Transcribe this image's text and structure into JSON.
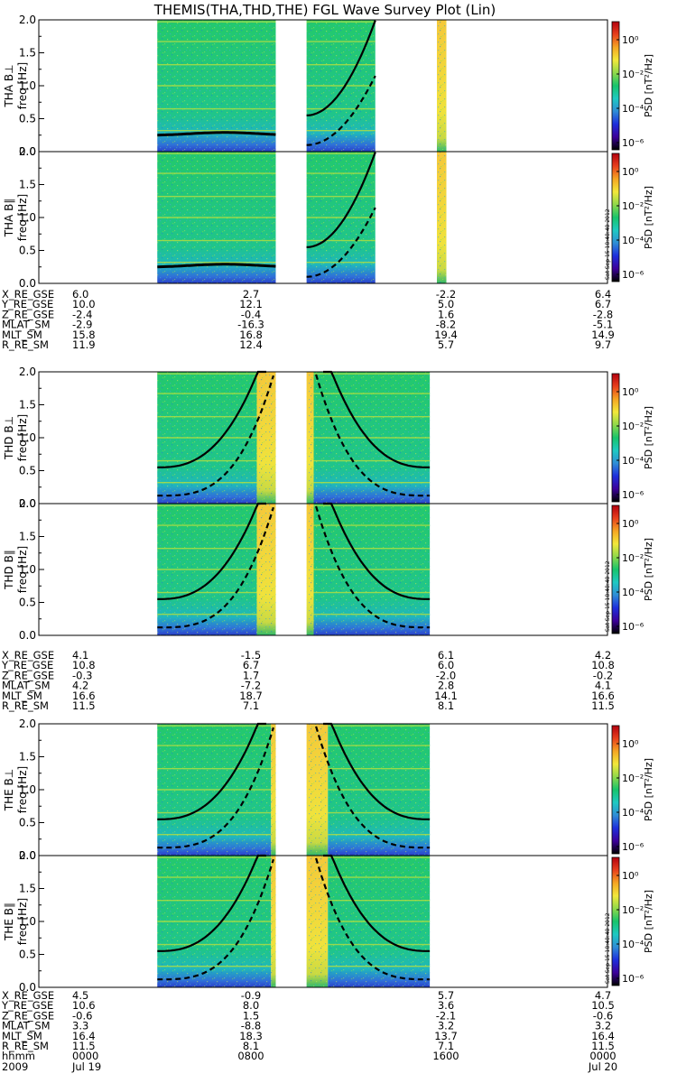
{
  "title": "THEMIS(THA,THD,THE) FGL Wave Survey Plot (Lin)",
  "colorbar": {
    "label": "PSD [nT²/Hz]",
    "ticks": [
      "10⁰",
      "10⁻²",
      "10⁻⁴",
      "10⁻⁶"
    ],
    "stamp": "Sat Sep 15 18:48:48 2012",
    "colors": [
      "#000000",
      "#3c009a",
      "#1e2edc",
      "#2f8dd6",
      "#1ec9c2",
      "#17c46b",
      "#8fd94a",
      "#f2e83a",
      "#f5a623",
      "#e8401c",
      "#b3000f"
    ]
  },
  "chart_data": {
    "type": "heatmap",
    "title": "THEMIS(THA,THD,THE) FGL Wave Survey Plot (Lin)",
    "x_range_hhmm": [
      "0000 Jul 19",
      "0000 Jul 20"
    ],
    "y_range_hz": [
      0,
      2.0
    ],
    "y_ticks": [
      "2.0",
      "1.5",
      "1.0",
      "0.5",
      "0.0"
    ],
    "color_scale": "log",
    "color_label": "PSD [nT²/Hz]",
    "panels": [
      {
        "name": "THA B⊥",
        "ylabel": "freq [Hz]"
      },
      {
        "name": "THA B∥",
        "ylabel": "freq [Hz]"
      },
      {
        "name": "THD B⊥",
        "ylabel": "freq [Hz]"
      },
      {
        "name": "THD B∥",
        "ylabel": "freq [Hz]"
      },
      {
        "name": "THE B⊥",
        "ylabel": "freq [Hz]"
      },
      {
        "name": "THE B∥",
        "ylabel": "freq [Hz]"
      }
    ],
    "probes": [
      {
        "name": "THA",
        "labels": [
          "X_RE_GSE",
          "Y_RE_GSE",
          "Z_RE_GSE",
          "MLAT_SM",
          "MLT_SM",
          "R_RE_SM"
        ],
        "values": [
          [
            "6.0",
            "2.7",
            "-2.2",
            "6.4"
          ],
          [
            "10.0",
            "12.1",
            "5.0",
            "6.7"
          ],
          [
            "-2.4",
            "-0.4",
            "1.6",
            "-2.8"
          ],
          [
            "-2.9",
            "-16.3",
            "-8.2",
            "-5.1"
          ],
          [
            "15.8",
            "16.8",
            "19.4",
            "14.9"
          ],
          [
            "11.9",
            "12.4",
            "5.7",
            "9.7"
          ]
        ]
      },
      {
        "name": "THD",
        "labels": [
          "X_RE_GSE",
          "Y_RE_GSE",
          "Z_RE_GSE",
          "MLAT_SM",
          "MLT_SM",
          "R_RE_SM"
        ],
        "values": [
          [
            "4.1",
            "-1.5",
            "6.1",
            "4.2"
          ],
          [
            "10.8",
            "6.7",
            "6.0",
            "10.8"
          ],
          [
            "-0.3",
            "1.7",
            "-2.0",
            "-0.2"
          ],
          [
            "4.2",
            "-7.2",
            "2.8",
            "4.1"
          ],
          [
            "16.6",
            "18.7",
            "14.1",
            "16.6"
          ],
          [
            "11.5",
            "7.1",
            "8.1",
            "11.5"
          ]
        ]
      },
      {
        "name": "THE",
        "labels": [
          "X_RE_GSE",
          "Y_RE_GSE",
          "Z_RE_GSE",
          "MLAT_SM",
          "MLT_SM",
          "R_RE_SM"
        ],
        "values": [
          [
            "4.5",
            "-0.9",
            "5.7",
            "4.7"
          ],
          [
            "10.6",
            "8.0",
            "3.6",
            "10.5"
          ],
          [
            "-0.6",
            "1.5",
            "-2.1",
            "-0.6"
          ],
          [
            "3.3",
            "-8.8",
            "3.2",
            "3.2"
          ],
          [
            "16.4",
            "18.3",
            "13.7",
            "16.4"
          ],
          [
            "11.5",
            "8.1",
            "7.1",
            "11.5"
          ]
        ]
      }
    ],
    "time_axis": {
      "labels": [
        "hhmm",
        "2009"
      ],
      "values": [
        [
          "0000",
          "0800",
          "1600",
          "0000"
        ],
        [
          "Jul 19",
          "",
          "",
          "Jul 20"
        ]
      ]
    }
  }
}
